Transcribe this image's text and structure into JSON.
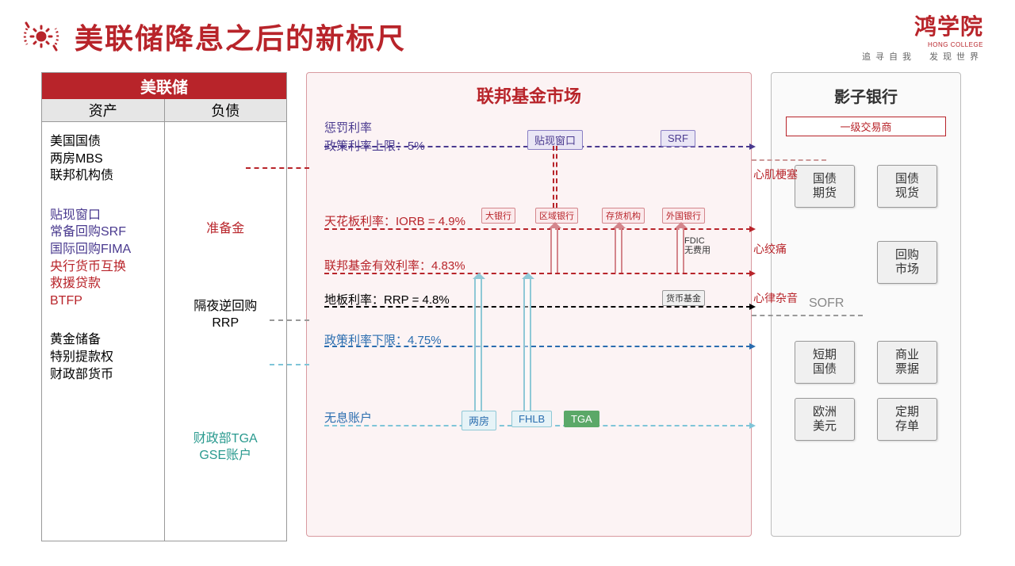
{
  "header": {
    "title": "美联储降息之后的新标尺",
    "logo_main": "鸿学院",
    "logo_en": "HONG COLLEGE",
    "logo_sub": "追寻自我　发现世界"
  },
  "fed": {
    "title": "美联储",
    "col_assets": "资产",
    "col_liab": "负债",
    "assets_g1": [
      "美国国债",
      "两房MBS",
      "联邦机构债"
    ],
    "assets_g2_purple": [
      "贴现窗口",
      "常备回购SRF",
      "国际回购FIMA"
    ],
    "assets_g2_red": [
      "央行货币互换",
      "救援贷款",
      "BTFP"
    ],
    "assets_g3": [
      "黄金储备",
      "特别提款权",
      "财政部货币"
    ],
    "reserve": "准备金",
    "rrp1": "隔夜逆回购",
    "rrp2": "RRP",
    "tga1": "财政部TGA",
    "tga2": "GSE账户"
  },
  "mid": {
    "title": "联邦基金市场",
    "penalty_l1": "惩罚利率",
    "penalty_l2": "政策利率上限：5%",
    "iorb": "天花板利率：IORB = 4.9%",
    "effr": "联邦基金有效利率：4.83%",
    "floor": "地板利率：RRP = 4.8%",
    "lower": "政策利率下限：4.75%",
    "zero": "无息账户",
    "discount": "贴现窗口",
    "srf": "SRF",
    "bigbank": "大银行",
    "regbank": "区域银行",
    "depinst": "存货机构",
    "fbank": "外国银行",
    "mmf": "货币基金",
    "gse1": "两房",
    "fhlb": "FHLB",
    "tga": "TGA",
    "fdic1": "FDIC",
    "fdic2": "无费用"
  },
  "right": {
    "title": "影子银行",
    "dealer": "一级交易商",
    "items": [
      "国债\n期货",
      "国债\n现货",
      "回购\n市场",
      "短期\n国债",
      "商业\n票据",
      "欧洲\n美元",
      "定期\n存单"
    ],
    "sofr": "SOFR"
  },
  "cross": {
    "l1": "心肌梗塞",
    "l2": "心绞痛",
    "l3": "心律杂音"
  },
  "colors": {
    "brand_red": "#b8242a",
    "purple": "#4a3a8f",
    "blue": "#2a6daf",
    "teal": "#2a9a8f",
    "grey": "#999"
  }
}
